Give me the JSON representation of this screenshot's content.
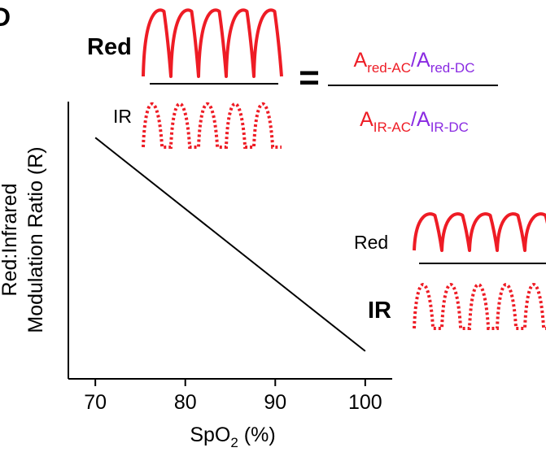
{
  "panel_letter": "D",
  "chart_data": {
    "type": "line",
    "title": "",
    "xlabel": "SpO",
    "xlabel_subscript": "2",
    "xlabel_suffix": " (%)",
    "ylabel_line1": "Red:Infrared",
    "ylabel_line2": "Modulation Ratio (R)",
    "xlim": [
      67,
      103
    ],
    "ylim": [
      0,
      1
    ],
    "x_ticks": [
      70,
      80,
      90,
      100
    ],
    "series": [
      {
        "name": "R",
        "x": [
          70,
          100
        ],
        "y": [
          0.87,
          0.1
        ]
      }
    ],
    "grid": false
  },
  "top_inset": {
    "numerator_label": "Red",
    "denominator_label": "IR",
    "equals": "="
  },
  "formula": {
    "numerator": [
      {
        "base": "A",
        "sub": "red-AC",
        "color": "#ee1c25"
      },
      {
        "text": "/",
        "color": "#8a2be2"
      },
      {
        "base": "A",
        "sub": "red-DC",
        "color": "#8a2be2"
      }
    ],
    "denominator": [
      {
        "base": "A",
        "sub": "IR-AC",
        "color": "#ee1c25"
      },
      {
        "text": "/",
        "color": "#8a2be2"
      },
      {
        "base": "A",
        "sub": "IR-DC",
        "color": "#8a2be2"
      }
    ]
  },
  "bottom_inset": {
    "numerator_label": "Red",
    "denominator_label": "IR"
  },
  "colors": {
    "red": "#ee1c25",
    "purple": "#8a2be2",
    "black": "#000000"
  }
}
